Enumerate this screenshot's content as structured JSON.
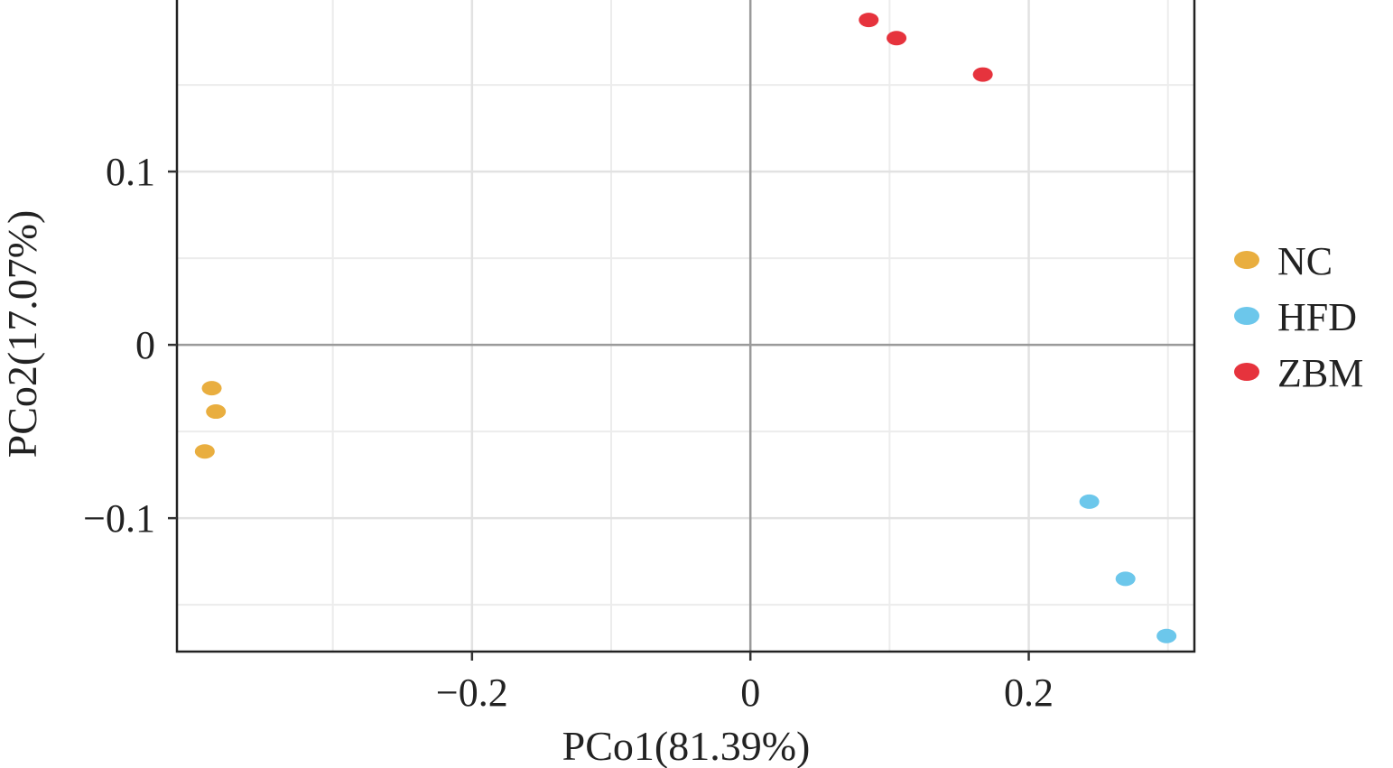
{
  "chart_data": {
    "type": "scatter",
    "title": "",
    "xlabel": "PCo1(81.39%)",
    "ylabel": "PCo2(17.07%)",
    "xlim": [
      -0.412,
      0.319
    ],
    "ylim": [
      -0.177,
      0.199
    ],
    "xticks": [
      {
        "value": -0.2,
        "label": "−0.2"
      },
      {
        "value": 0,
        "label": "0"
      },
      {
        "value": 0.2,
        "label": "0.2"
      }
    ],
    "yticks": [
      {
        "value": -0.1,
        "label": "−0.1"
      },
      {
        "value": 0,
        "label": "0"
      },
      {
        "value": 0.1,
        "label": "0.1"
      }
    ],
    "x_minor": [
      -0.3,
      -0.1,
      0.1,
      0.3
    ],
    "y_minor": [
      -0.15,
      -0.05,
      0.05,
      0.15
    ],
    "grid": true,
    "legend_position": "right",
    "series": [
      {
        "name": "NC",
        "color": "#E9AE3F",
        "points": [
          [
            -0.387,
            -0.025
          ],
          [
            -0.384,
            -0.0385
          ],
          [
            -0.392,
            -0.0615
          ]
        ]
      },
      {
        "name": "HFD",
        "color": "#6CC7EB",
        "points": [
          [
            0.2435,
            -0.0905
          ],
          [
            0.2695,
            -0.135
          ],
          [
            0.299,
            -0.168
          ]
        ]
      },
      {
        "name": "ZBM",
        "color": "#E6333D",
        "points": [
          [
            0.085,
            0.1875
          ],
          [
            0.105,
            0.177
          ],
          [
            0.167,
            0.156
          ]
        ]
      }
    ]
  }
}
